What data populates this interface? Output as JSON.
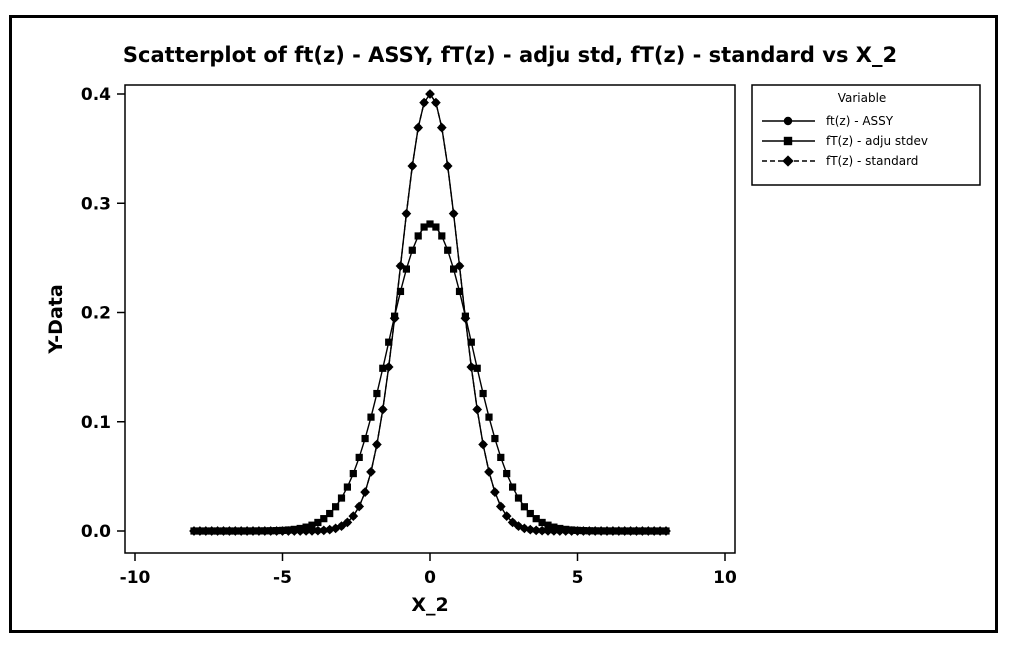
{
  "chart_data": {
    "type": "scatter",
    "title": "Scatterplot of ft(z) - ASSY, fT(z) - adju std, fT(z) - standard vs X_2",
    "xlabel": "X_2",
    "ylabel": "Y-Data",
    "xlim": [
      -10,
      10
    ],
    "ylim": [
      0,
      0.4
    ],
    "x_ticks": [
      -10,
      -5,
      0,
      5,
      10
    ],
    "x_tick_labels": [
      "-10",
      "-5",
      "0",
      "5",
      "10"
    ],
    "y_ticks": [
      0,
      0.1,
      0.2,
      0.3,
      0.4
    ],
    "y_tick_labels": [
      "0.0",
      "0.1",
      "0.2",
      "0.3",
      "0.4"
    ],
    "grid": false,
    "legend_position": "top-right",
    "legend_title": "Variable",
    "x_range": [
      -8,
      8
    ],
    "x_step": 0.2,
    "series": [
      {
        "name": "ft(z) - ASSY",
        "marker": "circle",
        "line_style": "solid",
        "distribution": "normal",
        "mean": 0,
        "sd": 1,
        "peak": 0.4
      },
      {
        "name": "fT(z) - adju stdev",
        "marker": "square",
        "line_style": "solid",
        "distribution": "normal",
        "mean": 0,
        "sd": 1.42,
        "peak": 0.281
      },
      {
        "name": "fT(z) - standard",
        "marker": "diamond",
        "line_style": "dashed",
        "distribution": "normal",
        "mean": 0,
        "sd": 1,
        "peak": 0.4
      }
    ],
    "colors": {
      "ink": "#000000",
      "background": "#ffffff"
    }
  }
}
